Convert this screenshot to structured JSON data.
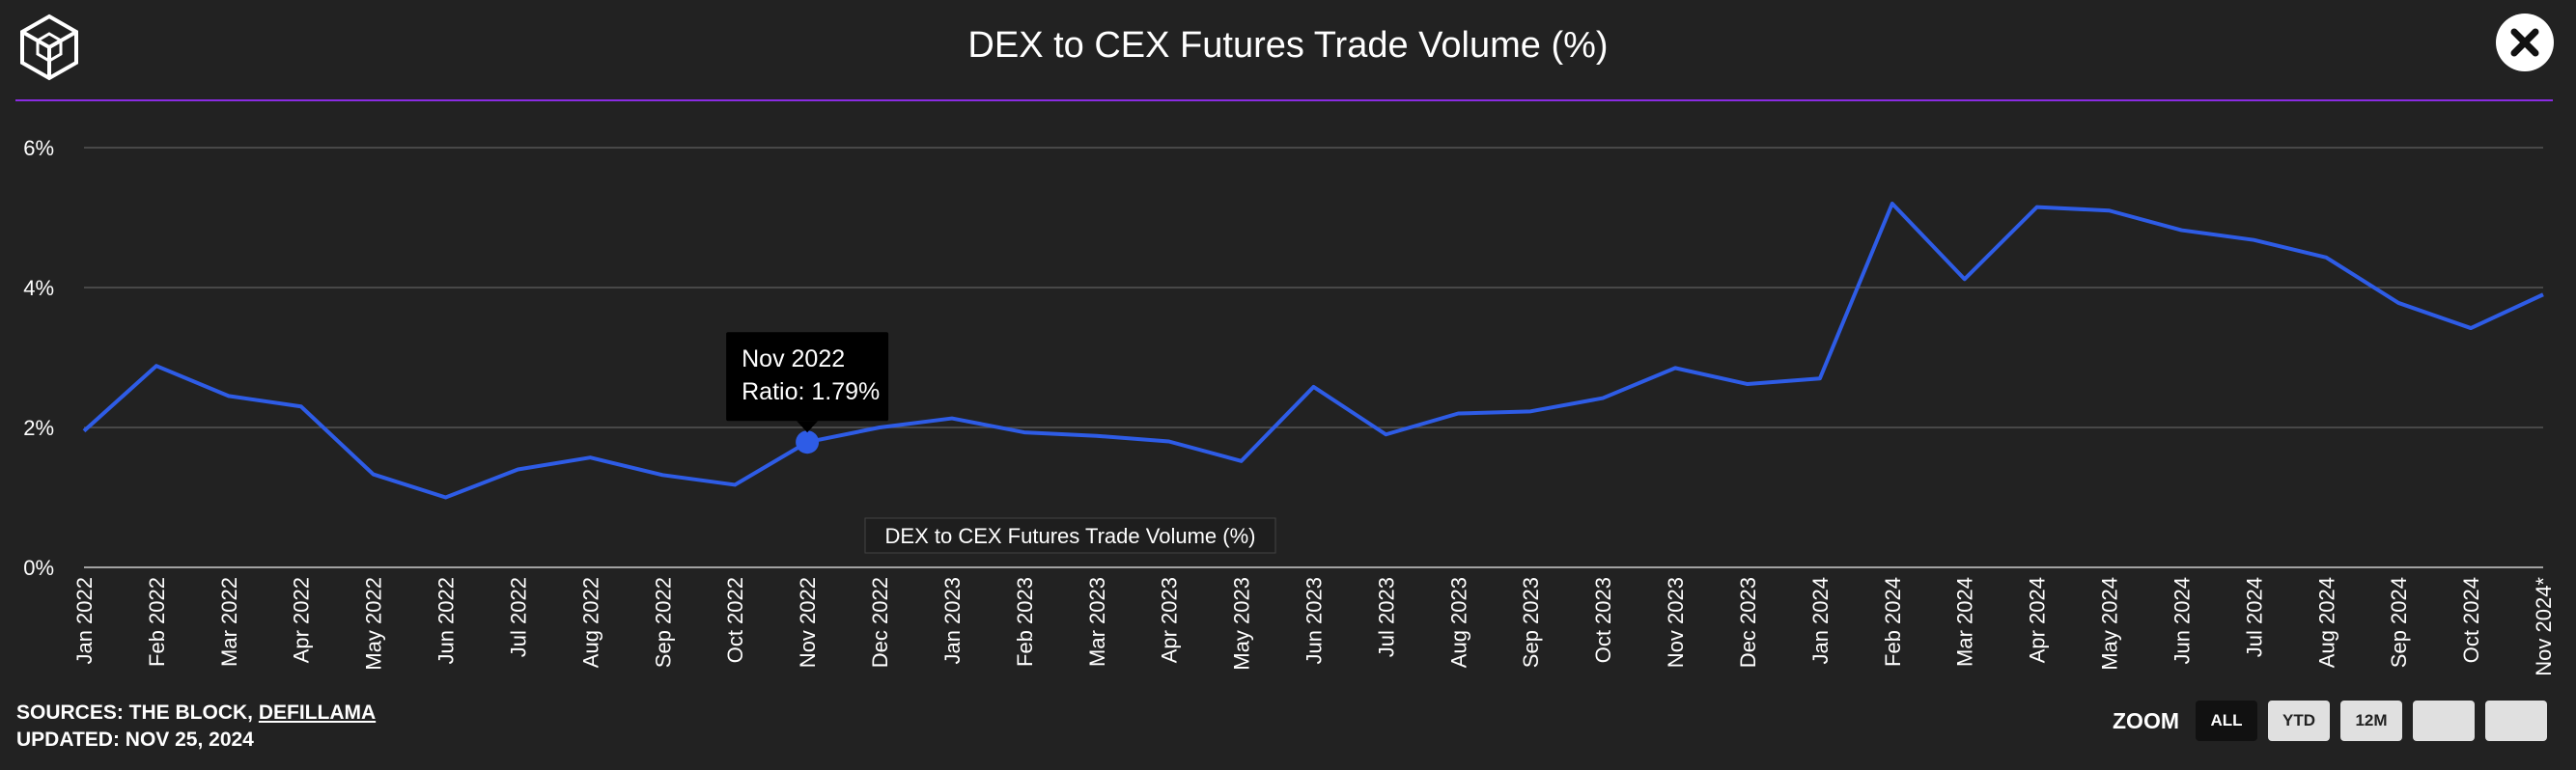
{
  "header": {
    "title": "DEX to CEX Futures Trade Volume (%)"
  },
  "colors": {
    "background": "#222222",
    "line": "#2E5CE6",
    "accent": "#8A2BE2",
    "grid": "#555555"
  },
  "chart_data": {
    "type": "line",
    "title": "DEX to CEX Futures Trade Volume (%)",
    "xlabel": "",
    "ylabel": "",
    "ylim": [
      0,
      6
    ],
    "yticks": [
      0,
      2,
      4,
      6
    ],
    "ytick_labels": [
      "0%",
      "2%",
      "4%",
      "6%"
    ],
    "categories": [
      "Jan 2022",
      "Feb 2022",
      "Mar 2022",
      "Apr 2022",
      "May 2022",
      "Jun 2022",
      "Jul 2022",
      "Aug 2022",
      "Sep 2022",
      "Oct 2022",
      "Nov 2022",
      "Dec 2022",
      "Jan 2023",
      "Feb 2023",
      "Mar 2023",
      "Apr 2023",
      "May 2023",
      "Jun 2023",
      "Jul 2023",
      "Aug 2023",
      "Sep 2023",
      "Oct 2023",
      "Nov 2023",
      "Dec 2023",
      "Jan 2024",
      "Feb 2024",
      "Mar 2024",
      "Apr 2024",
      "May 2024",
      "Jun 2024",
      "Jul 2024",
      "Aug 2024",
      "Sep 2024",
      "Oct 2024",
      "Nov 2024*"
    ],
    "series": [
      {
        "name": "DEX to CEX Futures Trade Volume (%)",
        "values": [
          1.95,
          2.88,
          2.45,
          2.3,
          1.33,
          1.0,
          1.4,
          1.57,
          1.32,
          1.18,
          1.79,
          2.0,
          2.13,
          1.93,
          1.88,
          1.8,
          1.52,
          2.58,
          1.9,
          2.2,
          2.23,
          2.42,
          2.85,
          2.62,
          2.7,
          5.2,
          4.12,
          5.15,
          5.1,
          4.82,
          4.68,
          4.43,
          3.78,
          3.42,
          3.9
        ]
      }
    ],
    "grid": true,
    "legend": "bottom-center",
    "tooltip": {
      "category": "Nov 2022",
      "index": 10,
      "title": "Nov 2022",
      "text": "Ratio: 1.79%"
    }
  },
  "footer": {
    "sources_prefix": "SOURCES: THE BLOCK, ",
    "sources_link": "DEFILLAMA",
    "updated": "UPDATED: NOV 25, 2024"
  },
  "zoom": {
    "label": "ZOOM",
    "all": "ALL",
    "ytd": "YTD",
    "m12": "12M"
  }
}
